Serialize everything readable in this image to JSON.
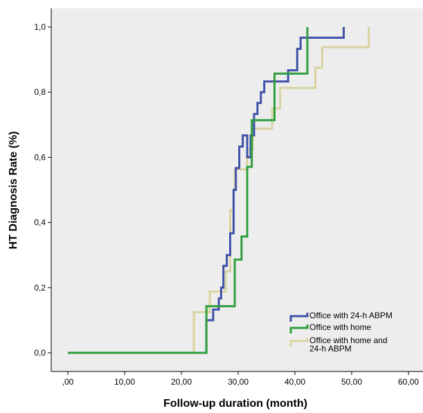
{
  "chart_data": {
    "type": "line",
    "step": true,
    "xlabel": "Follow-up duration (month)",
    "ylabel": "HT Diagnosis Rate (%)",
    "xlim": [
      -2,
      61
    ],
    "ylim": [
      -0.04,
      1.06
    ],
    "x_ticks": [
      {
        "value": 0,
        "label": ",00"
      },
      {
        "value": 10,
        "label": "10,00"
      },
      {
        "value": 20,
        "label": "20,00"
      },
      {
        "value": 30,
        "label": "30,00"
      },
      {
        "value": 40,
        "label": "40,00"
      },
      {
        "value": 50,
        "label": "50,00"
      },
      {
        "value": 60,
        "label": "60,00"
      }
    ],
    "y_ticks": [
      {
        "value": 0,
        "label": "0,0"
      },
      {
        "value": 0.2,
        "label": "0,2"
      },
      {
        "value": 0.4,
        "label": "0,4"
      },
      {
        "value": 0.6,
        "label": "0,6"
      },
      {
        "value": 0.8,
        "label": "0,8"
      },
      {
        "value": 1.0,
        "label": "1,0"
      }
    ],
    "grid": false,
    "plot_background": "#ededed",
    "legend_position": "bottom-right",
    "series": [
      {
        "name": "Office with 24-h ABPM",
        "color": "#3f51a8",
        "points": [
          [
            0,
            0
          ],
          [
            24.4,
            0
          ],
          [
            24.4,
            0.1
          ],
          [
            25.6,
            0.1
          ],
          [
            25.6,
            0.133
          ],
          [
            26.6,
            0.133
          ],
          [
            26.6,
            0.167
          ],
          [
            27.0,
            0.167
          ],
          [
            27.0,
            0.2
          ],
          [
            27.4,
            0.2
          ],
          [
            27.4,
            0.267
          ],
          [
            28.0,
            0.267
          ],
          [
            28.0,
            0.3
          ],
          [
            28.6,
            0.3
          ],
          [
            28.6,
            0.367
          ],
          [
            29.2,
            0.367
          ],
          [
            29.2,
            0.5
          ],
          [
            29.6,
            0.5
          ],
          [
            29.6,
            0.567
          ],
          [
            30.2,
            0.567
          ],
          [
            30.2,
            0.633
          ],
          [
            30.8,
            0.633
          ],
          [
            30.8,
            0.667
          ],
          [
            31.6,
            0.667
          ],
          [
            31.6,
            0.6
          ],
          [
            32.2,
            0.6
          ],
          [
            32.2,
            0.667
          ],
          [
            32.8,
            0.667
          ],
          [
            32.8,
            0.733
          ],
          [
            33.4,
            0.733
          ],
          [
            33.4,
            0.767
          ],
          [
            34.0,
            0.767
          ],
          [
            34.0,
            0.8
          ],
          [
            34.6,
            0.8
          ],
          [
            34.6,
            0.833
          ],
          [
            38.8,
            0.833
          ],
          [
            38.8,
            0.867
          ],
          [
            40.4,
            0.867
          ],
          [
            40.4,
            0.933
          ],
          [
            41.0,
            0.933
          ],
          [
            41.0,
            0.967
          ],
          [
            48.6,
            0.967
          ],
          [
            48.6,
            1.0
          ]
        ]
      },
      {
        "name": "Office with home",
        "color": "#2e9e3e",
        "points": [
          [
            0,
            0
          ],
          [
            24.4,
            0
          ],
          [
            24.4,
            0.143
          ],
          [
            29.4,
            0.143
          ],
          [
            29.4,
            0.286
          ],
          [
            30.6,
            0.286
          ],
          [
            30.6,
            0.357
          ],
          [
            31.6,
            0.357
          ],
          [
            31.6,
            0.571
          ],
          [
            32.4,
            0.571
          ],
          [
            32.4,
            0.714
          ],
          [
            36.4,
            0.714
          ],
          [
            36.4,
            0.857
          ],
          [
            42.2,
            0.857
          ],
          [
            42.2,
            1.0
          ]
        ]
      },
      {
        "name": "Office with home and 24-h ABPM",
        "color": "#d8d3a0",
        "points": [
          [
            0,
            0
          ],
          [
            22.2,
            0
          ],
          [
            22.2,
            0.125
          ],
          [
            25.0,
            0.125
          ],
          [
            25.0,
            0.188
          ],
          [
            27.8,
            0.188
          ],
          [
            27.8,
            0.25
          ],
          [
            28.6,
            0.25
          ],
          [
            28.6,
            0.438
          ],
          [
            29.2,
            0.438
          ],
          [
            29.2,
            0.5
          ],
          [
            29.4,
            0.5
          ],
          [
            29.4,
            0.563
          ],
          [
            31.6,
            0.563
          ],
          [
            31.6,
            0.625
          ],
          [
            32.6,
            0.625
          ],
          [
            32.6,
            0.688
          ],
          [
            36.0,
            0.688
          ],
          [
            36.0,
            0.75
          ],
          [
            37.4,
            0.75
          ],
          [
            37.4,
            0.813
          ],
          [
            43.6,
            0.813
          ],
          [
            43.6,
            0.875
          ],
          [
            44.8,
            0.875
          ],
          [
            44.8,
            0.938
          ],
          [
            53.0,
            0.938
          ],
          [
            53.0,
            1.0
          ]
        ]
      }
    ]
  },
  "legend": {
    "items": [
      {
        "label_lines": [
          "Office with 24-h ABPM"
        ]
      },
      {
        "label_lines": [
          "Office with home"
        ]
      },
      {
        "label_lines": [
          "Office with home and",
          "24-h ABPM"
        ]
      }
    ]
  }
}
